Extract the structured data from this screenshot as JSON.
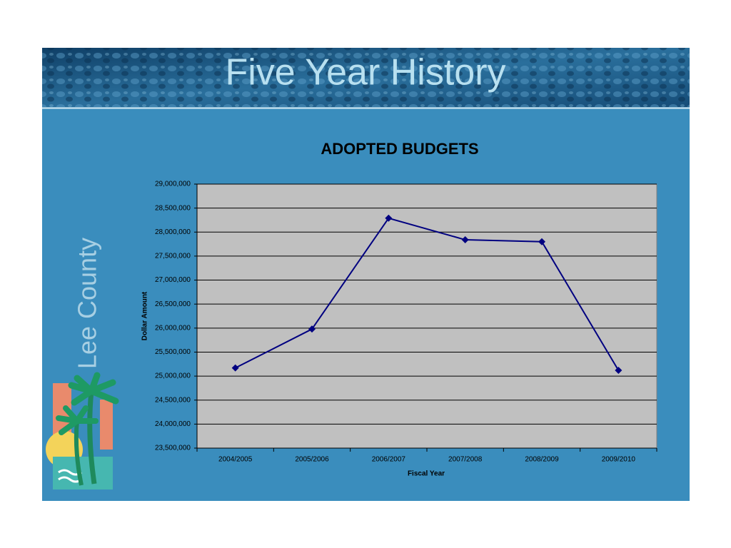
{
  "slide_title": "Five Year History",
  "logo_text": "Lee County",
  "chart_data": {
    "type": "line",
    "title": "ADOPTED BUDGETS",
    "x_label": "Fiscal Year",
    "y_label": "Dollar Amount",
    "categories": [
      "2004/2005",
      "2005/2006",
      "2006/2007",
      "2007/2008",
      "2008/2009",
      "2009/2010"
    ],
    "series": [
      {
        "name": "Adopted Budget",
        "color": "#000080",
        "values": [
          25170000,
          25980000,
          28290000,
          27840000,
          27800000,
          25120000
        ]
      }
    ],
    "ylim": [
      23500000,
      29000000
    ],
    "yticks": [
      {
        "value": 23500000,
        "label": "23,500,000"
      },
      {
        "value": 24000000,
        "label": "24,000,000"
      },
      {
        "value": 24500000,
        "label": "24,500,000"
      },
      {
        "value": 25000000,
        "label": "25,000,000"
      },
      {
        "value": 25500000,
        "label": "25,500,000"
      },
      {
        "value": 26000000,
        "label": "26,000,000"
      },
      {
        "value": 26500000,
        "label": "26,500,000"
      },
      {
        "value": 27000000,
        "label": "27,000,000"
      },
      {
        "value": 27500000,
        "label": "27,500,000"
      },
      {
        "value": 28000000,
        "label": "28,000,000"
      },
      {
        "value": 28500000,
        "label": "28,500,000"
      },
      {
        "value": 29000000,
        "label": "29,000,000"
      }
    ],
    "grid": true,
    "plot_background": "#c0c0c0"
  }
}
